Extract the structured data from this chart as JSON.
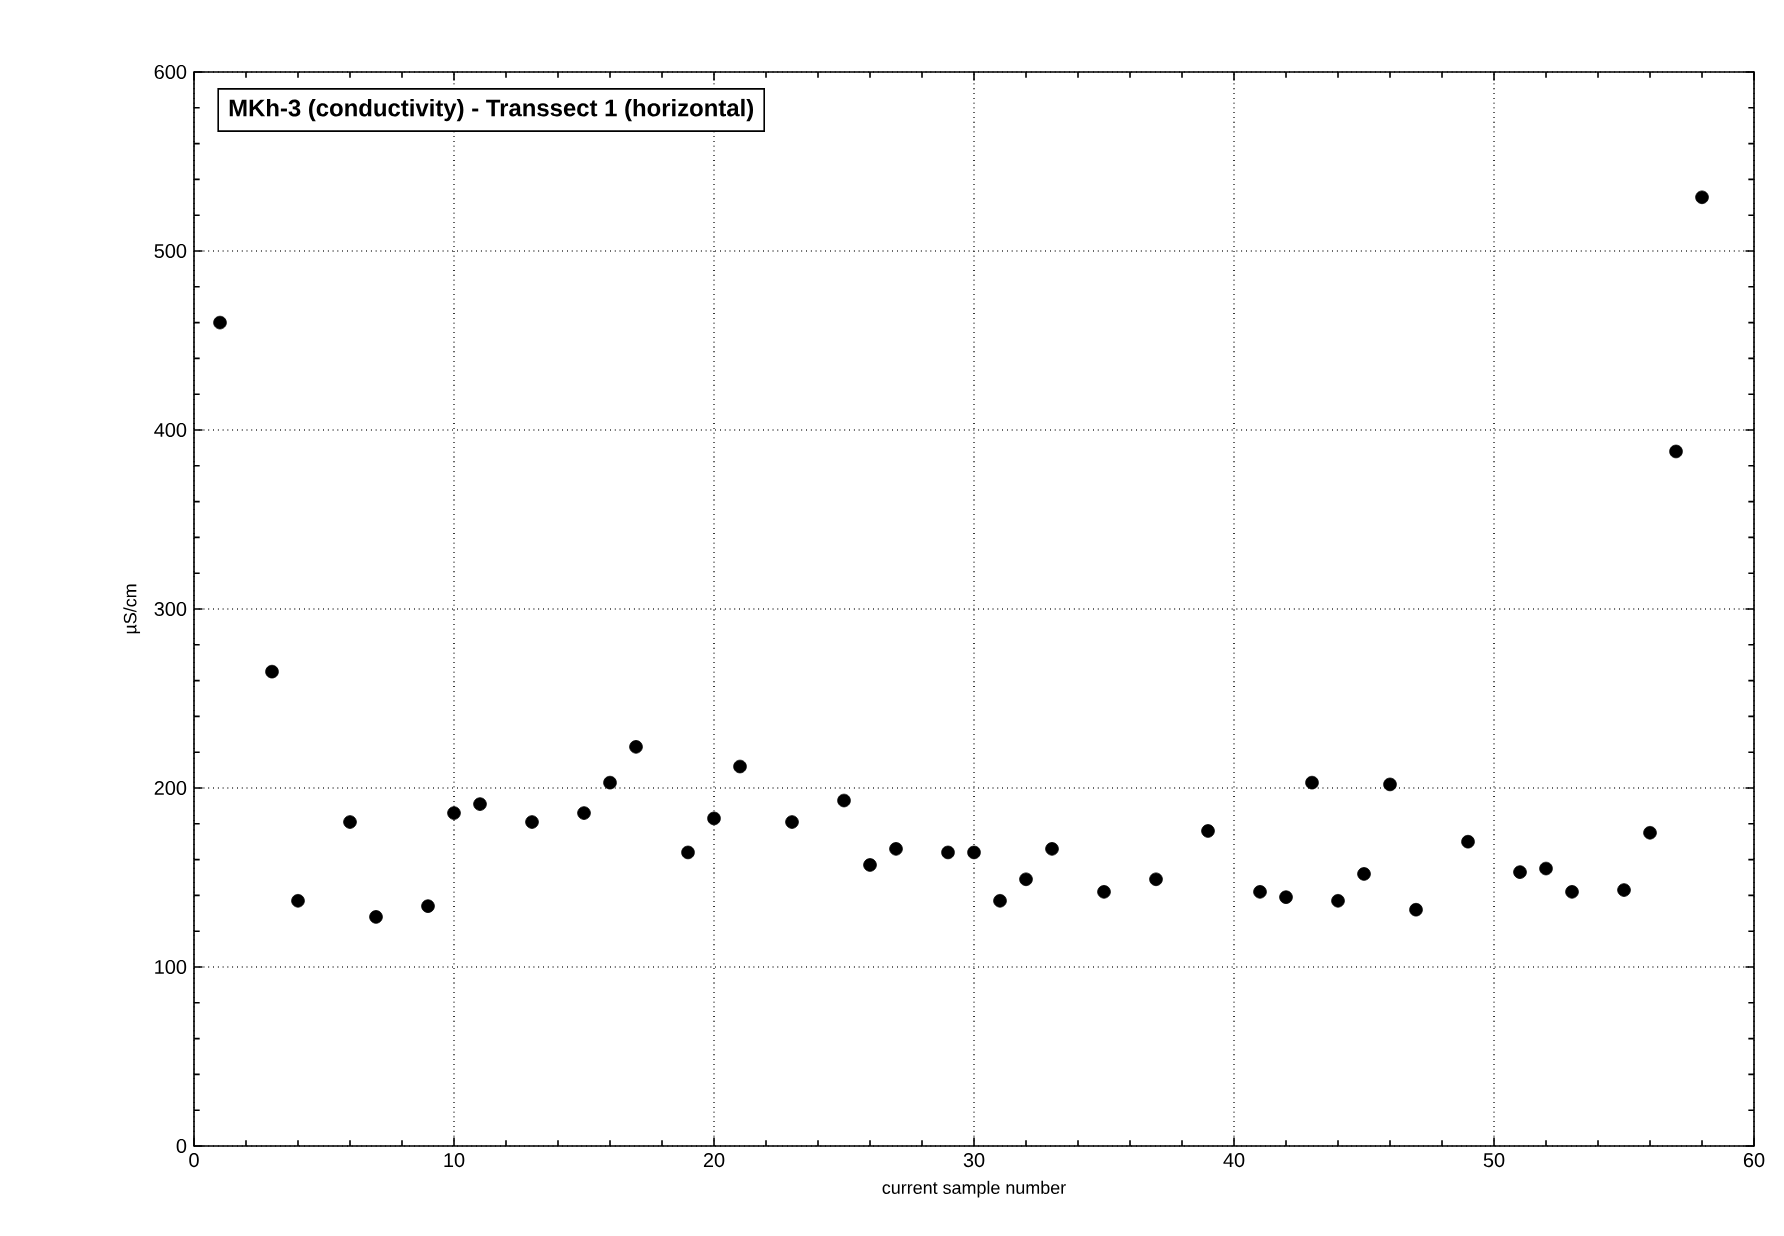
{
  "chart_data": {
    "type": "scatter",
    "title": "MKh-3 (conductivity)     -    Transsect 1 (horizontal)",
    "xlabel": "current sample number",
    "ylabel": "µS/cm",
    "x": [
      1,
      3,
      4,
      6,
      7,
      9,
      10,
      11,
      13,
      15,
      16,
      17,
      19,
      20,
      21,
      23,
      25,
      26,
      27,
      29,
      30,
      31,
      32,
      33,
      35,
      37,
      39,
      41,
      42,
      43,
      44,
      45,
      46,
      47,
      49,
      51,
      52,
      53,
      55,
      56,
      57,
      58
    ],
    "series": [
      {
        "color": "#000000",
        "values": [
          460,
          265,
          137,
          181,
          128,
          134,
          186,
          191,
          181,
          186,
          203,
          223,
          164,
          183,
          212,
          181,
          193,
          157,
          166,
          164,
          164,
          137,
          149,
          166,
          142,
          149,
          176,
          142,
          139,
          203,
          137,
          152,
          202,
          132,
          170,
          153,
          155,
          142,
          143,
          175,
          388,
          530
        ]
      }
    ],
    "marker": "circle",
    "grid": true,
    "xlim": [
      0,
      60
    ],
    "xticks": [
      0,
      10,
      20,
      30,
      40,
      50,
      60
    ],
    "ylim": [
      0,
      600
    ],
    "yticks": [
      0,
      100,
      200,
      300,
      400,
      500,
      600
    ]
  }
}
